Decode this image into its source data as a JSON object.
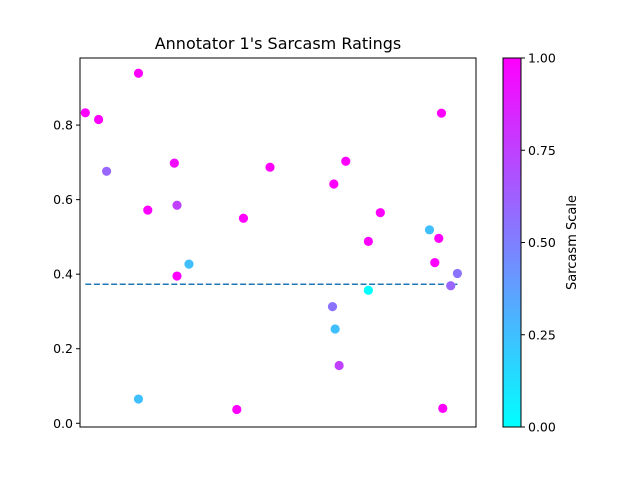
{
  "chart_data": {
    "type": "scatter",
    "title": "Annotator 1's Sarcasm Ratings",
    "xlabel": "",
    "ylabel": "",
    "x_ticks_visible": false,
    "xlim": [
      -0.4,
      29.4
    ],
    "ylim": [
      -0.01,
      0.98
    ],
    "yticks": [
      0.0,
      0.2,
      0.4,
      0.6,
      0.8
    ],
    "ytick_labels": [
      "0.0",
      "0.2",
      "0.4",
      "0.6",
      "0.8"
    ],
    "grid": false,
    "colormap": "cool",
    "colorbar": {
      "label": "Sarcasm Scale",
      "range": [
        0.0,
        1.0
      ],
      "ticks": [
        0.0,
        0.25,
        0.5,
        0.75,
        1.0
      ],
      "tick_labels": [
        "0.00",
        "0.25",
        "0.50",
        "0.75",
        "1.00"
      ],
      "colors": [
        "#00ffff",
        "#ff00ff"
      ]
    },
    "reference_line": {
      "y": 0.373,
      "style": "dashed",
      "color": "#1f77b4"
    },
    "points": [
      {
        "x": 0,
        "y": 0.833,
        "c": 1.0
      },
      {
        "x": 1,
        "y": 0.815,
        "c": 1.0
      },
      {
        "x": 1.6,
        "y": 0.676,
        "c": 0.6
      },
      {
        "x": 4.0,
        "y": 0.065,
        "c": 0.25
      },
      {
        "x": 4.0,
        "y": 0.939,
        "c": 1.0
      },
      {
        "x": 4.7,
        "y": 0.572,
        "c": 1.0
      },
      {
        "x": 6.7,
        "y": 0.698,
        "c": 0.95
      },
      {
        "x": 6.9,
        "y": 0.585,
        "c": 0.75
      },
      {
        "x": 6.9,
        "y": 0.395,
        "c": 1.0
      },
      {
        "x": 7.8,
        "y": 0.427,
        "c": 0.25
      },
      {
        "x": 11.4,
        "y": 0.037,
        "c": 1.0
      },
      {
        "x": 11.9,
        "y": 0.55,
        "c": 1.0
      },
      {
        "x": 13.9,
        "y": 0.687,
        "c": 1.0
      },
      {
        "x": 18.6,
        "y": 0.313,
        "c": 0.55
      },
      {
        "x": 18.7,
        "y": 0.642,
        "c": 1.0
      },
      {
        "x": 18.8,
        "y": 0.253,
        "c": 0.25
      },
      {
        "x": 19.1,
        "y": 0.155,
        "c": 0.75
      },
      {
        "x": 19.6,
        "y": 0.703,
        "c": 1.0
      },
      {
        "x": 21.3,
        "y": 0.488,
        "c": 1.0
      },
      {
        "x": 21.3,
        "y": 0.357,
        "c": 0.0
      },
      {
        "x": 22.2,
        "y": 0.565,
        "c": 1.0
      },
      {
        "x": 25.9,
        "y": 0.519,
        "c": 0.25
      },
      {
        "x": 26.3,
        "y": 0.431,
        "c": 1.0
      },
      {
        "x": 26.6,
        "y": 0.496,
        "c": 1.0
      },
      {
        "x": 26.8,
        "y": 0.832,
        "c": 1.0
      },
      {
        "x": 26.9,
        "y": 0.04,
        "c": 1.0
      },
      {
        "x": 27.5,
        "y": 0.369,
        "c": 0.6
      },
      {
        "x": 28.0,
        "y": 0.402,
        "c": 0.55
      }
    ]
  }
}
